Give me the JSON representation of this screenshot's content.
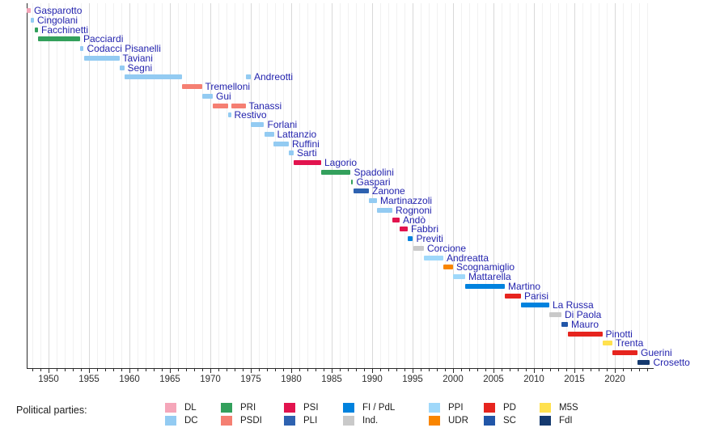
{
  "legend": {
    "label": "Political parties:",
    "columns": [
      [
        "DL",
        "DC"
      ],
      [
        "PRI",
        "PSDI"
      ],
      [
        "PSI",
        "PLI"
      ],
      [
        "FI / PdL",
        "Ind."
      ],
      [
        "PPI",
        "UDR"
      ],
      [
        "PD",
        "SC"
      ],
      [
        "M5S",
        "FdI"
      ]
    ]
  },
  "chart_data": {
    "type": "bar",
    "layout": "horizontal-timeline-gantt",
    "title": "",
    "xlabel": "",
    "ylabel": "",
    "x_axis": {
      "min": 1947.3,
      "max": 2024.8,
      "major_ticks": [
        1950,
        1955,
        1960,
        1965,
        1970,
        1975,
        1980,
        1985,
        1990,
        1995,
        2000,
        2005,
        2010,
        2015,
        2020
      ],
      "minor_tick_interval": 1,
      "grid": true
    },
    "label_color": "#2323AE",
    "parties": {
      "DL": "#F5A6B9",
      "DC": "#93CBF2",
      "PRI": "#33A05C",
      "PSDI": "#F57F72",
      "PSI": "#E2134E",
      "PLI": "#2E62B0",
      "FI / PdL": "#0082DE",
      "Ind.": "#C9C9C9",
      "PPI": "#9FD8FA",
      "UDR": "#F98500",
      "PD": "#E6241E",
      "SC": "#2156A8",
      "M5S": "#FFE14E",
      "FdI": "#153A6F"
    },
    "ministers": [
      {
        "name": "Gasparotto",
        "party": "DL",
        "terms": [
          [
            1947.35,
            1947.8
          ]
        ]
      },
      {
        "name": "Cingolani",
        "party": "DC",
        "terms": [
          [
            1947.8,
            1948.2
          ]
        ]
      },
      {
        "name": "Facchinetti",
        "party": "PRI",
        "terms": [
          [
            1948.3,
            1948.7
          ]
        ]
      },
      {
        "name": "Pacciardi",
        "party": "PRI",
        "terms": [
          [
            1948.7,
            1953.9
          ]
        ]
      },
      {
        "name": "Codacci Pisanelli",
        "party": "DC",
        "terms": [
          [
            1953.9,
            1954.35
          ]
        ]
      },
      {
        "name": "Taviani",
        "party": "DC",
        "terms": [
          [
            1954.35,
            1958.75
          ]
        ]
      },
      {
        "name": "Segni",
        "party": "DC",
        "terms": [
          [
            1958.75,
            1959.35
          ]
        ]
      },
      {
        "name": "Andreotti",
        "party": "DC",
        "terms": [
          [
            1959.35,
            1966.45
          ],
          [
            1974.35,
            1975.0
          ]
        ]
      },
      {
        "name": "Tremelloni",
        "party": "PSDI",
        "terms": [
          [
            1966.45,
            1968.95
          ]
        ]
      },
      {
        "name": "Gui",
        "party": "DC",
        "terms": [
          [
            1968.95,
            1970.3
          ]
        ]
      },
      {
        "name": "Tanassi",
        "party": "PSDI",
        "terms": [
          [
            1970.3,
            1972.2
          ],
          [
            1972.55,
            1974.35
          ]
        ]
      },
      {
        "name": "Restivo",
        "party": "DC",
        "terms": [
          [
            1972.2,
            1972.55
          ]
        ]
      },
      {
        "name": "Forlani",
        "party": "DC",
        "terms": [
          [
            1975.0,
            1976.65
          ]
        ]
      },
      {
        "name": "Lattanzio",
        "party": "DC",
        "terms": [
          [
            1976.65,
            1977.85
          ]
        ]
      },
      {
        "name": "Ruffini",
        "party": "DC",
        "terms": [
          [
            1977.85,
            1979.7
          ]
        ]
      },
      {
        "name": "Sarti",
        "party": "DC",
        "terms": [
          [
            1979.7,
            1980.3
          ]
        ]
      },
      {
        "name": "Lagorio",
        "party": "PSI",
        "terms": [
          [
            1980.3,
            1983.7
          ]
        ]
      },
      {
        "name": "Spadolini",
        "party": "PRI",
        "terms": [
          [
            1983.7,
            1987.35
          ]
        ]
      },
      {
        "name": "Gaspari",
        "party": "PRI",
        "terms": [
          [
            1987.35,
            1987.65
          ]
        ]
      },
      {
        "name": "Zanone",
        "party": "PLI",
        "terms": [
          [
            1987.65,
            1989.6
          ]
        ]
      },
      {
        "name": "Martinazzoli",
        "party": "DC",
        "terms": [
          [
            1989.6,
            1990.6
          ]
        ]
      },
      {
        "name": "Rognoni",
        "party": "DC",
        "terms": [
          [
            1990.6,
            1992.5
          ]
        ]
      },
      {
        "name": "Andò",
        "party": "PSI",
        "terms": [
          [
            1992.5,
            1993.4
          ]
        ]
      },
      {
        "name": "Fabbri",
        "party": "PSI",
        "terms": [
          [
            1993.4,
            1994.4
          ]
        ]
      },
      {
        "name": "Previti",
        "party": "FI / PdL",
        "terms": [
          [
            1994.4,
            1995.05
          ]
        ]
      },
      {
        "name": "Corcione",
        "party": "Ind.",
        "terms": [
          [
            1995.05,
            1996.4
          ]
        ]
      },
      {
        "name": "Andreatta",
        "party": "PPI",
        "terms": [
          [
            1996.4,
            1998.8
          ]
        ]
      },
      {
        "name": "Scognamiglio",
        "party": "UDR",
        "terms": [
          [
            1998.8,
            2000.0
          ]
        ]
      },
      {
        "name": "Mattarella",
        "party": "PPI",
        "terms": [
          [
            2000.0,
            2001.5
          ]
        ]
      },
      {
        "name": "Martino",
        "party": "FI / PdL",
        "terms": [
          [
            2001.5,
            2006.4
          ]
        ]
      },
      {
        "name": "Parisi",
        "party": "PD",
        "terms": [
          [
            2006.4,
            2008.4
          ]
        ]
      },
      {
        "name": "La Russa",
        "party": "FI / PdL",
        "terms": [
          [
            2008.4,
            2011.9
          ]
        ]
      },
      {
        "name": "Di Paola",
        "party": "Ind.",
        "terms": [
          [
            2011.9,
            2013.4
          ]
        ]
      },
      {
        "name": "Mauro",
        "party": "SC",
        "terms": [
          [
            2013.4,
            2014.2
          ]
        ]
      },
      {
        "name": "Pinotti",
        "party": "PD",
        "terms": [
          [
            2014.2,
            2018.45
          ]
        ]
      },
      {
        "name": "Trenta",
        "party": "M5S",
        "terms": [
          [
            2018.45,
            2019.7
          ]
        ]
      },
      {
        "name": "Guerini",
        "party": "PD",
        "terms": [
          [
            2019.7,
            2022.8
          ]
        ]
      },
      {
        "name": "Crosetto",
        "party": "FdI",
        "terms": [
          [
            2022.8,
            2024.35
          ]
        ]
      }
    ]
  }
}
